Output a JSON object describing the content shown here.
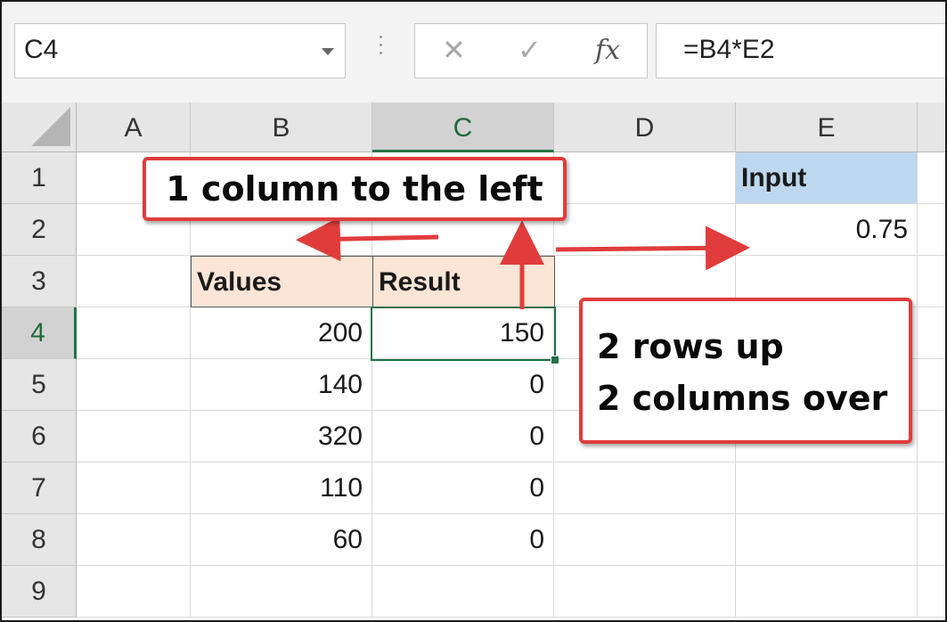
{
  "formula_bar": {
    "name_box": "C4",
    "cancel_icon": "✕",
    "enter_icon": "✓",
    "fx_icon": "fx",
    "formula": "=B4*E2"
  },
  "columns": [
    "A",
    "B",
    "C",
    "D",
    "E"
  ],
  "selected_column": "C",
  "rows": [
    "1",
    "2",
    "3",
    "4",
    "5",
    "6",
    "7",
    "8",
    "9"
  ],
  "selected_row": "4",
  "cells": {
    "E1": "Input",
    "E2": "0.75",
    "B3": "Values",
    "C3": "Result",
    "B4": "200",
    "C4": "150",
    "B5": "140",
    "C5": "0",
    "B6": "320",
    "C6": "0",
    "B7": "110",
    "C7": "0",
    "B8": "60",
    "C8": "0"
  },
  "annotations": {
    "left_callout": "1 column to the left",
    "right_callout": [
      "2 rows up",
      "2 columns over"
    ]
  },
  "colors": {
    "accent_green": "#217346",
    "callout_red": "#e03c3c",
    "values_header": "#fbe5d6",
    "input_header": "#bdd7ee"
  }
}
